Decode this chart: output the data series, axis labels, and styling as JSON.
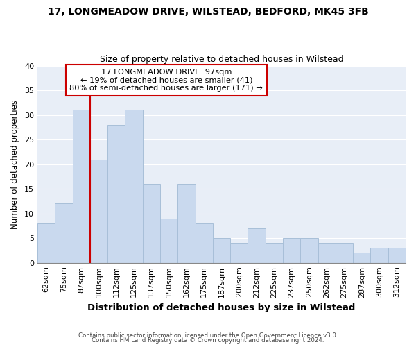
{
  "title": "17, LONGMEADOW DRIVE, WILSTEAD, BEDFORD, MK45 3FB",
  "subtitle": "Size of property relative to detached houses in Wilstead",
  "xlabel": "Distribution of detached houses by size in Wilstead",
  "ylabel": "Number of detached properties",
  "categories": [
    "62sqm",
    "75sqm",
    "87sqm",
    "100sqm",
    "112sqm",
    "125sqm",
    "137sqm",
    "150sqm",
    "162sqm",
    "175sqm",
    "187sqm",
    "200sqm",
    "212sqm",
    "225sqm",
    "237sqm",
    "250sqm",
    "262sqm",
    "275sqm",
    "287sqm",
    "300sqm",
    "312sqm"
  ],
  "values": [
    8,
    12,
    31,
    21,
    28,
    31,
    16,
    9,
    16,
    8,
    5,
    4,
    7,
    4,
    5,
    5,
    4,
    4,
    2,
    3,
    3
  ],
  "bar_color": "#c9d9ee",
  "bar_edge_color": "#a8bfd8",
  "marker_label": "17 LONGMEADOW DRIVE: 97sqm",
  "annotation_line1": "← 19% of detached houses are smaller (41)",
  "annotation_line2": "80% of semi-detached houses are larger (171) →",
  "annotation_box_color": "#ffffff",
  "annotation_box_edge": "#cc0000",
  "marker_line_color": "#cc0000",
  "ylim": [
    0,
    40
  ],
  "yticks": [
    0,
    5,
    10,
    15,
    20,
    25,
    30,
    35,
    40
  ],
  "footer1": "Contains HM Land Registry data © Crown copyright and database right 2024.",
  "footer2": "Contains public sector information licensed under the Open Government Licence v3.0.",
  "bg_color": "#ffffff",
  "plot_bg_color": "#e8eef7",
  "grid_color": "#ffffff"
}
